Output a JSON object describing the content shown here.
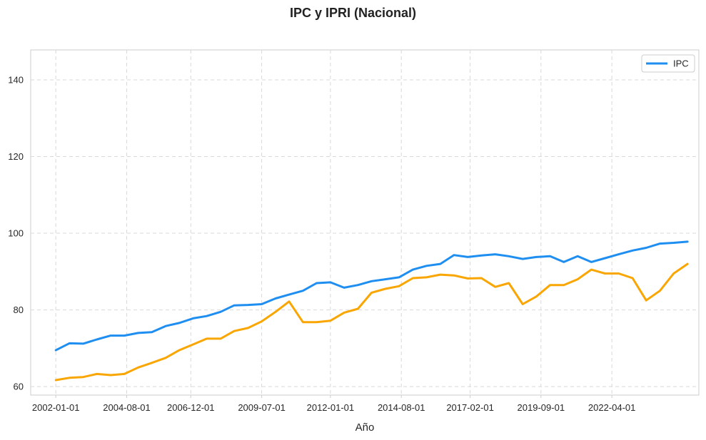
{
  "chart_data": {
    "type": "line",
    "title": "IPC y IPRI (Nacional)",
    "xlabel": "Año",
    "ylabel": "",
    "ylim": [
      57.8,
      147.8
    ],
    "xlim": [
      "2001-02-01",
      "2025-06-01"
    ],
    "x_ticks": [
      "2002-01-01",
      "2004-08-01",
      "2006-12-01",
      "2009-07-01",
      "2012-01-01",
      "2014-08-01",
      "2017-02-01",
      "2019-09-01",
      "2022-04-01"
    ],
    "y_ticks": [
      60,
      80,
      100,
      120,
      140
    ],
    "grid": true,
    "legend_position": "top-right",
    "colors": {
      "IPC": "#1f8ef1",
      "second": "#f9a602"
    },
    "series": [
      {
        "name": "IPC",
        "color": "#1f8ef1",
        "points": [
          [
            "2002-01-01",
            69.5
          ],
          [
            "2002-07-01",
            71.3
          ],
          [
            "2003-01-01",
            71.2
          ],
          [
            "2003-07-01",
            72.3
          ],
          [
            "2004-01-01",
            73.3
          ],
          [
            "2004-07-01",
            73.3
          ],
          [
            "2005-01-01",
            74.0
          ],
          [
            "2005-07-01",
            74.2
          ],
          [
            "2006-01-01",
            75.8
          ],
          [
            "2006-07-01",
            76.6
          ],
          [
            "2007-01-01",
            77.8
          ],
          [
            "2007-07-01",
            78.4
          ],
          [
            "2008-01-01",
            79.5
          ],
          [
            "2008-07-01",
            81.2
          ],
          [
            "2009-01-01",
            81.3
          ],
          [
            "2009-07-01",
            81.5
          ],
          [
            "2010-01-01",
            83.0
          ],
          [
            "2010-07-01",
            84.0
          ],
          [
            "2011-01-01",
            85.0
          ],
          [
            "2011-07-01",
            87.0
          ],
          [
            "2012-01-01",
            87.2
          ],
          [
            "2012-07-01",
            85.8
          ],
          [
            "2013-01-01",
            86.5
          ],
          [
            "2013-07-01",
            87.5
          ],
          [
            "2014-01-01",
            88.0
          ],
          [
            "2014-07-01",
            88.5
          ],
          [
            "2015-01-01",
            90.5
          ],
          [
            "2015-07-01",
            91.5
          ],
          [
            "2016-01-01",
            92.0
          ],
          [
            "2016-07-01",
            94.3
          ],
          [
            "2017-01-01",
            93.8
          ],
          [
            "2017-07-01",
            94.2
          ],
          [
            "2018-01-01",
            94.5
          ],
          [
            "2018-07-01",
            94.0
          ],
          [
            "2019-01-01",
            93.3
          ],
          [
            "2019-07-01",
            93.8
          ],
          [
            "2020-01-01",
            94.0
          ],
          [
            "2020-07-01",
            92.5
          ],
          [
            "2021-01-01",
            94.0
          ],
          [
            "2021-07-01",
            92.5
          ],
          [
            "2022-01-01",
            93.5
          ],
          [
            "2022-07-01",
            94.5
          ],
          [
            "2023-01-01",
            95.5
          ],
          [
            "2023-07-01",
            96.2
          ],
          [
            "2024-01-01",
            97.3
          ],
          [
            "2024-07-01",
            97.5
          ],
          [
            "2025-01-01",
            97.8
          ]
        ]
      },
      {
        "name": "",
        "color": "#f9a602",
        "points": [
          [
            "2002-01-01",
            61.7
          ],
          [
            "2002-07-01",
            62.3
          ],
          [
            "2003-01-01",
            62.5
          ],
          [
            "2003-07-01",
            63.3
          ],
          [
            "2004-01-01",
            63.0
          ],
          [
            "2004-07-01",
            63.3
          ],
          [
            "2005-01-01",
            65.0
          ],
          [
            "2005-07-01",
            66.2
          ],
          [
            "2006-01-01",
            67.5
          ],
          [
            "2006-07-01",
            69.5
          ],
          [
            "2007-01-01",
            71.0
          ],
          [
            "2007-07-01",
            72.5
          ],
          [
            "2008-01-01",
            72.5
          ],
          [
            "2008-07-01",
            74.5
          ],
          [
            "2009-01-01",
            75.3
          ],
          [
            "2009-07-01",
            77.0
          ],
          [
            "2010-01-01",
            79.5
          ],
          [
            "2010-07-01",
            82.2
          ],
          [
            "2011-01-01",
            76.8
          ],
          [
            "2011-07-01",
            76.8
          ],
          [
            "2012-01-01",
            77.2
          ],
          [
            "2012-07-01",
            79.3
          ],
          [
            "2013-01-01",
            80.3
          ],
          [
            "2013-07-01",
            84.5
          ],
          [
            "2014-01-01",
            85.5
          ],
          [
            "2014-07-01",
            86.2
          ],
          [
            "2015-01-01",
            88.3
          ],
          [
            "2015-07-01",
            88.5
          ],
          [
            "2016-01-01",
            89.2
          ],
          [
            "2016-07-01",
            89.0
          ],
          [
            "2017-01-01",
            88.2
          ],
          [
            "2017-07-01",
            88.3
          ],
          [
            "2018-01-01",
            86.0
          ],
          [
            "2018-07-01",
            87.0
          ],
          [
            "2019-01-01",
            81.5
          ],
          [
            "2019-07-01",
            83.5
          ],
          [
            "2020-01-01",
            86.5
          ],
          [
            "2020-07-01",
            86.5
          ],
          [
            "2021-01-01",
            88.0
          ],
          [
            "2021-07-01",
            90.5
          ],
          [
            "2022-01-01",
            89.5
          ],
          [
            "2022-07-01",
            89.5
          ],
          [
            "2023-01-01",
            88.3
          ],
          [
            "2023-07-01",
            82.5
          ],
          [
            "2024-01-01",
            85.0
          ],
          [
            "2024-07-01",
            89.5
          ],
          [
            "2025-01-01",
            92.0
          ]
        ]
      }
    ]
  }
}
